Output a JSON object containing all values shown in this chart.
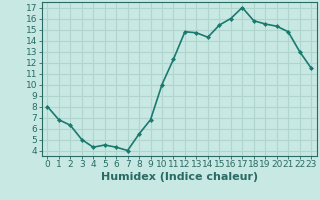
{
  "x": [
    0,
    1,
    2,
    3,
    4,
    5,
    6,
    7,
    8,
    9,
    10,
    11,
    12,
    13,
    14,
    15,
    16,
    17,
    18,
    19,
    20,
    21,
    22,
    23
  ],
  "y": [
    8.0,
    6.8,
    6.3,
    5.0,
    4.3,
    4.5,
    4.3,
    4.0,
    5.5,
    6.8,
    10.0,
    12.3,
    14.8,
    14.7,
    14.3,
    15.4,
    16.0,
    17.0,
    15.8,
    15.5,
    15.3,
    14.8,
    13.0,
    11.5
  ],
  "line_color": "#1a7a6e",
  "marker": "D",
  "marker_size": 2.0,
  "bg_color": "#c8e8e4",
  "grid_color": "#b0d4ce",
  "xlabel": "Humidex (Indice chaleur)",
  "xlim": [
    -0.5,
    23.5
  ],
  "ylim": [
    3.5,
    17.5
  ],
  "xticks": [
    0,
    1,
    2,
    3,
    4,
    5,
    6,
    7,
    8,
    9,
    10,
    11,
    12,
    13,
    14,
    15,
    16,
    17,
    18,
    19,
    20,
    21,
    22,
    23
  ],
  "yticks": [
    4,
    5,
    6,
    7,
    8,
    9,
    10,
    11,
    12,
    13,
    14,
    15,
    16,
    17
  ],
  "tick_fontsize": 6.5,
  "xlabel_fontsize": 8.0,
  "line_width": 1.2,
  "spine_color": "#2a6a64"
}
